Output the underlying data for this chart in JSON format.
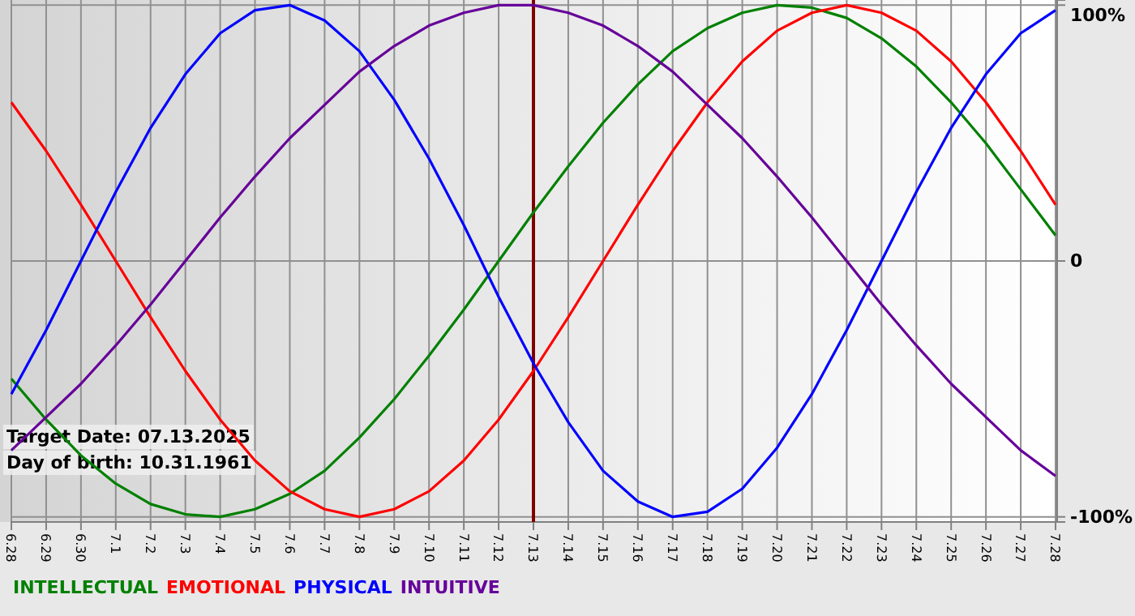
{
  "chart_data": {
    "type": "line",
    "categories": [
      "6.28",
      "6.29",
      "6.30",
      "7.1",
      "7.2",
      "7.3",
      "7.4",
      "7.5",
      "7.6",
      "7.7",
      "7.8",
      "7.9",
      "7.10",
      "7.11",
      "7.12",
      "7.13",
      "7.14",
      "7.15",
      "7.16",
      "7.17",
      "7.18",
      "7.19",
      "7.20",
      "7.21",
      "7.22",
      "7.23",
      "7.24",
      "7.25",
      "7.26",
      "7.27",
      "7.28"
    ],
    "series": [
      {
        "name": "INTELLECTUAL",
        "color": "#008000",
        "values": [
          -46,
          -62,
          -76,
          -87,
          -95,
          -99,
          -100,
          -97,
          -91,
          -82,
          -69,
          -54,
          -37,
          -19,
          0,
          19,
          37,
          54,
          69,
          82,
          91,
          97,
          100,
          99,
          95,
          87,
          76,
          62,
          46,
          28,
          10
        ]
      },
      {
        "name": "EMOTIONAL",
        "color": "#ff0000",
        "values": [
          62,
          43,
          22,
          0,
          -22,
          -43,
          -62,
          -78,
          -90,
          -97,
          -100,
          -97,
          -90,
          -78,
          -62,
          -43,
          -22,
          0,
          22,
          43,
          62,
          78,
          90,
          97,
          100,
          97,
          90,
          78,
          62,
          43,
          22
        ]
      },
      {
        "name": "PHYSICAL",
        "color": "#0000ff",
        "values": [
          -52,
          -27,
          0,
          27,
          52,
          73,
          89,
          98,
          100,
          94,
          82,
          63,
          40,
          14,
          -14,
          -40,
          -63,
          -82,
          -94,
          -100,
          -98,
          -89,
          -73,
          -52,
          -27,
          0,
          27,
          52,
          73,
          89,
          98
        ]
      },
      {
        "name": "INTUITIVE",
        "color": "#660099",
        "values": [
          -74,
          -61,
          -48,
          -33,
          -17,
          0,
          17,
          33,
          48,
          61,
          74,
          84,
          92,
          97,
          100,
          100,
          97,
          92,
          84,
          74,
          61,
          48,
          33,
          17,
          0,
          -17,
          -33,
          -48,
          -61,
          -74,
          -84
        ]
      }
    ],
    "ylim": [
      -102,
      102
    ],
    "yticks": [
      {
        "value": 100,
        "label": "100%"
      },
      0,
      {
        "value": -100,
        "label": "-100%"
      }
    ],
    "grid": true,
    "legend": "bottom left",
    "ref_lines": [
      {
        "axis": "x",
        "value": "7.13",
        "color": "#800000"
      }
    ],
    "annotations": [
      "Target Date: 07.13.2025",
      "Day of birth: 10.31.1961"
    ]
  }
}
